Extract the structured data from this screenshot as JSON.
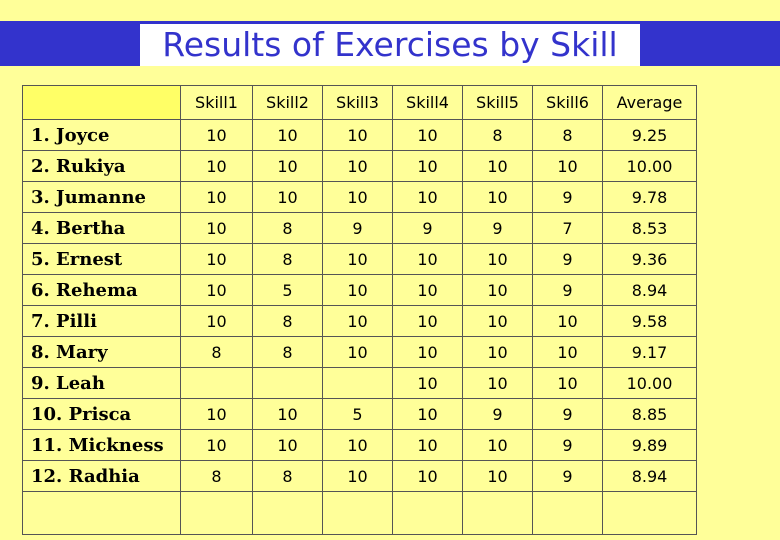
{
  "title": "Results of Exercises by Skill",
  "table": {
    "headers": [
      "",
      "Skill1",
      "Skill2",
      "Skill3",
      "Skill4",
      "Skill5",
      "Skill6",
      "Average"
    ],
    "rows": [
      [
        "1. Joyce",
        "10",
        "10",
        "10",
        "10",
        "8",
        "8",
        "9.25"
      ],
      [
        "2. Rukiya",
        "10",
        "10",
        "10",
        "10",
        "10",
        "10",
        "10.00"
      ],
      [
        "3. Jumanne",
        "10",
        "10",
        "10",
        "10",
        "10",
        "9",
        "9.78"
      ],
      [
        "4. Bertha",
        "10",
        "8",
        "9",
        "9",
        "9",
        "7",
        "8.53"
      ],
      [
        "5. Ernest",
        "10",
        "8",
        "10",
        "10",
        "10",
        "9",
        "9.36"
      ],
      [
        "6. Rehema",
        "10",
        "5",
        "10",
        "10",
        "10",
        "9",
        "8.94"
      ],
      [
        "7. Pilli",
        "10",
        "8",
        "10",
        "10",
        "10",
        "10",
        "9.58"
      ],
      [
        "8. Mary",
        "8",
        "8",
        "10",
        "10",
        "10",
        "10",
        "9.17"
      ],
      [
        "9. Leah",
        "",
        "",
        "",
        "10",
        "10",
        "10",
        "10.00"
      ],
      [
        "10. Prisca",
        "10",
        "10",
        "5",
        "10",
        "9",
        "9",
        "8.85"
      ],
      [
        "11. Mickness",
        "10",
        "10",
        "10",
        "10",
        "10",
        "9",
        "9.89"
      ],
      [
        "12. Radhia",
        "8",
        "8",
        "10",
        "10",
        "10",
        "9",
        "8.94"
      ],
      [
        "",
        "",
        "",
        "",
        "",
        "",
        "",
        ""
      ]
    ]
  },
  "colors": {
    "background": "#ffff99",
    "title_bar": "#3333cc",
    "title_text": "#3333cc",
    "corner_cell": "#ffff66"
  }
}
